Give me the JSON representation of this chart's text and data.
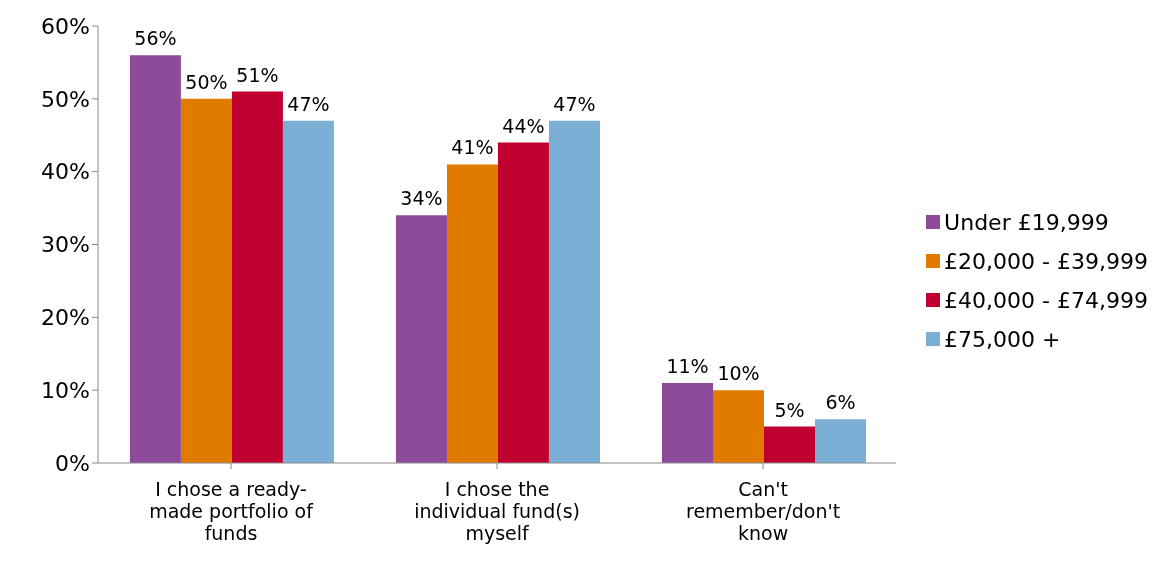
{
  "chart_data": {
    "type": "bar",
    "categories": [
      "I chose a ready-made portfolio of funds",
      "I chose the individual fund(s) myself",
      "Can't remember/don't know"
    ],
    "series": [
      {
        "name": "Under £19,999",
        "color": "#8e4a9a",
        "values": [
          56,
          34,
          11
        ],
        "value_labels": [
          "56%",
          "34%",
          "11%"
        ]
      },
      {
        "name": "£20,000 - £39,999",
        "color": "#e07b00",
        "values": [
          50,
          41,
          10
        ],
        "value_labels": [
          "50%",
          "41%",
          "10%"
        ]
      },
      {
        "name": "£40,000 - £74,999",
        "color": "#c0002f",
        "values": [
          51,
          44,
          5
        ],
        "value_labels": [
          "51%",
          "44%",
          "5%"
        ]
      },
      {
        "name": "£75,000 +",
        "color": "#7bafd6",
        "values": [
          47,
          47,
          6
        ],
        "value_labels": [
          "47%",
          "47%",
          "6%"
        ]
      }
    ],
    "ylim": [
      0,
      60
    ],
    "yticks": [
      {
        "value": 0,
        "label": "0%"
      },
      {
        "value": 10,
        "label": "10%"
      },
      {
        "value": 20,
        "label": "20%"
      },
      {
        "value": 30,
        "label": "30%"
      },
      {
        "value": 40,
        "label": "40%"
      },
      {
        "value": 50,
        "label": "50%"
      },
      {
        "value": 60,
        "label": "60%"
      }
    ],
    "grid": false,
    "legend": "right"
  }
}
